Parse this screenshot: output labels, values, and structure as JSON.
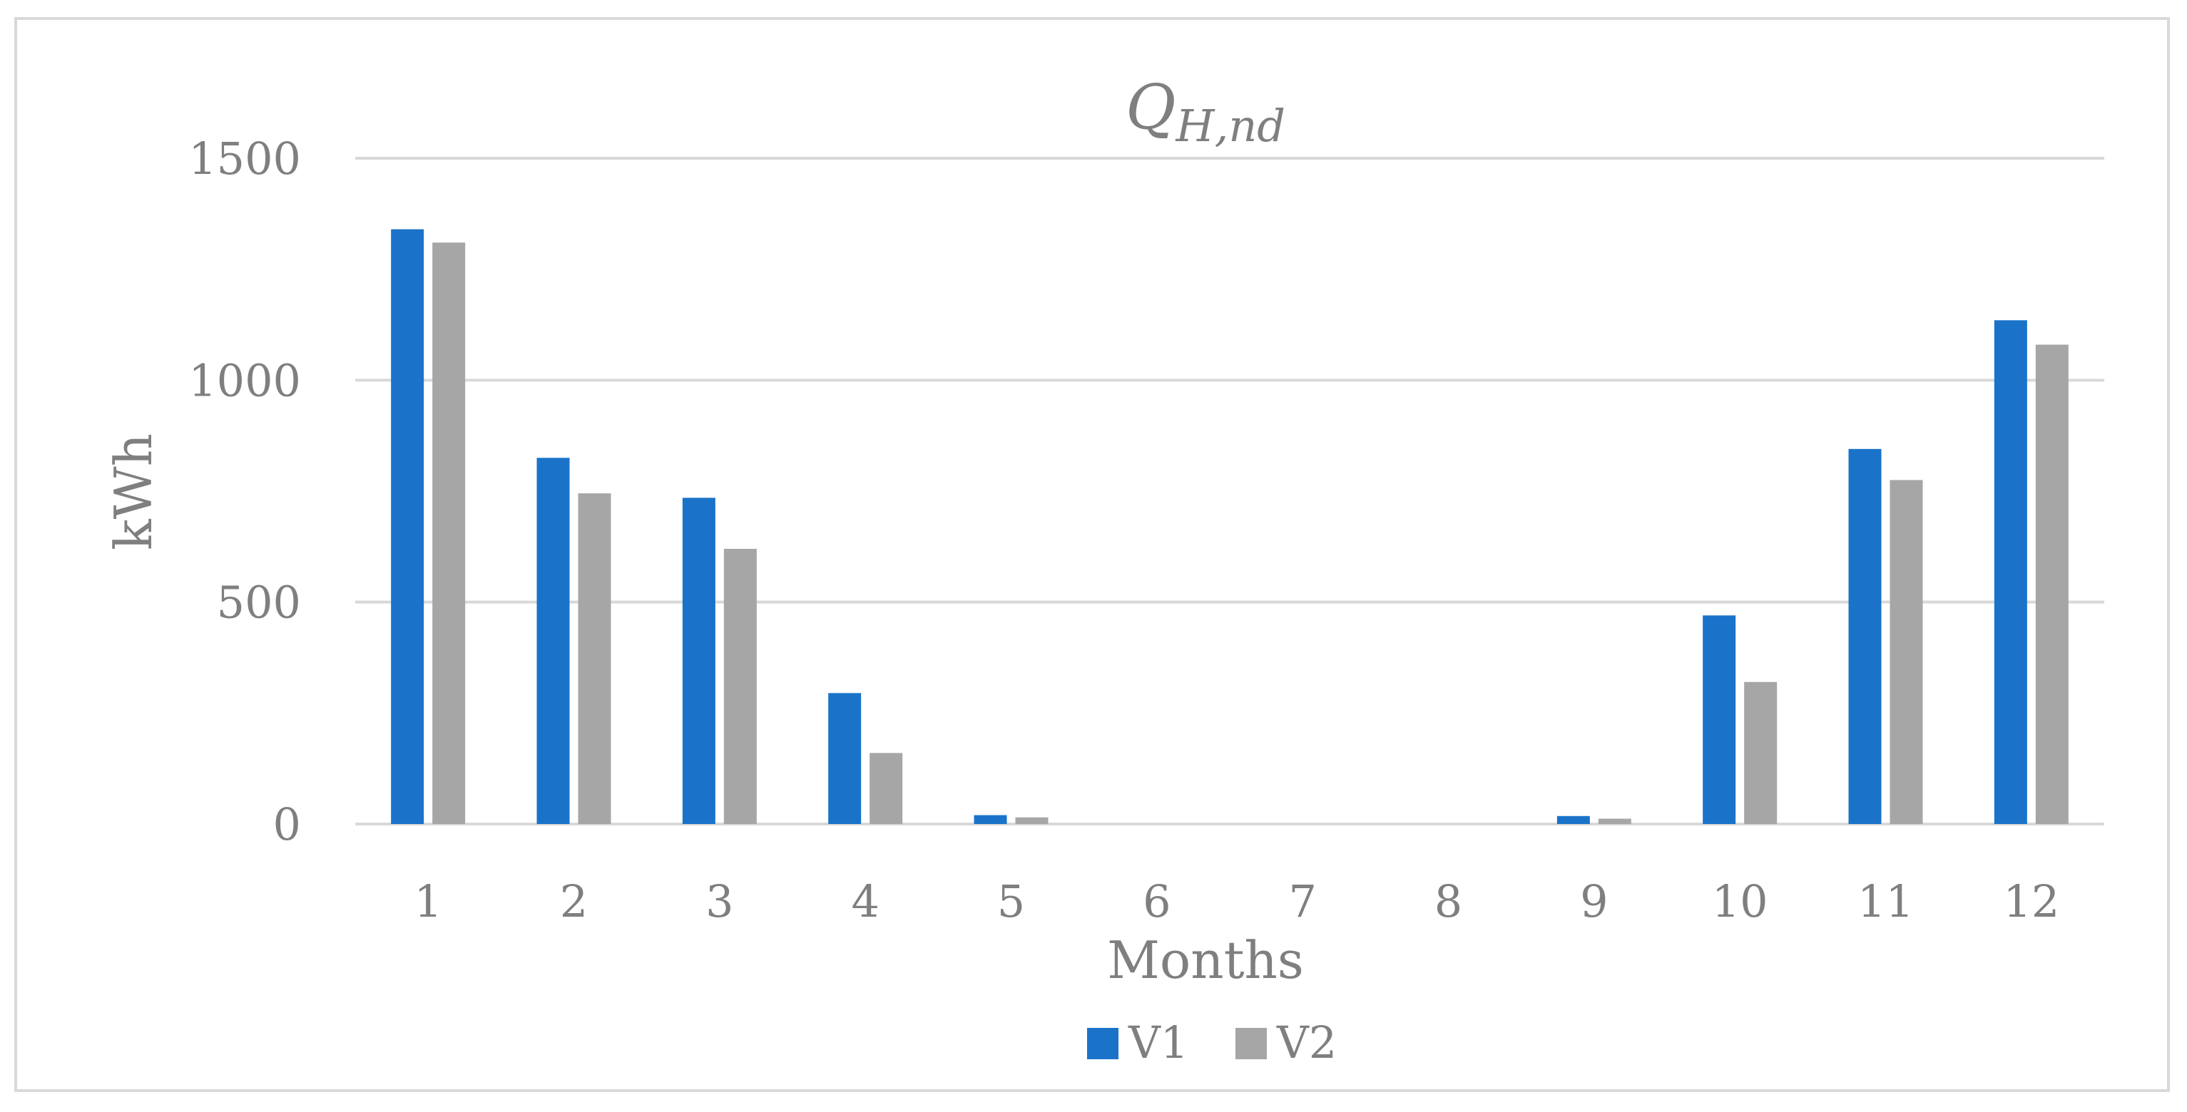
{
  "chart_data": {
    "type": "bar",
    "title_main": "Q",
    "title_sub": "H,nd",
    "xlabel": "Months",
    "ylabel": "kWh",
    "categories": [
      "1",
      "2",
      "3",
      "4",
      "5",
      "6",
      "7",
      "8",
      "9",
      "10",
      "11",
      "12"
    ],
    "ylim": [
      0,
      1500
    ],
    "yticks": [
      "0",
      "500",
      "1000",
      "1500"
    ],
    "grid": true,
    "legend_position": "bottom",
    "series": [
      {
        "name": "V1",
        "color": "#1a73c9",
        "values": [
          1340,
          825,
          735,
          295,
          20,
          0,
          0,
          0,
          18,
          470,
          845,
          1135
        ]
      },
      {
        "name": "V2",
        "color": "#a6a6a6",
        "values": [
          1310,
          745,
          620,
          160,
          15,
          0,
          0,
          0,
          12,
          320,
          775,
          1080
        ]
      }
    ]
  }
}
